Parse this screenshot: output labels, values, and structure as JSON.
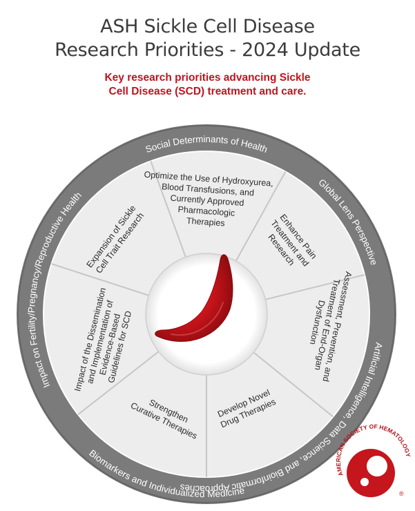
{
  "title": {
    "line1": "ASH Sickle Cell Disease",
    "line2": "Research Priorities - 2024 Update"
  },
  "subtitle": {
    "line1": "Key research priorities advancing Sickle",
    "line2": "Cell Disease (SCD) treatment and care."
  },
  "outer_ring": [
    "Social Determinants of Health",
    "Global Lens Perspective",
    "Artificial Intelligence, Data Science, and Bioinformatic Approaches",
    "Biomarkers and Individualized Medicine",
    "Impact on Fertility/Pregnancy/Reproductive Health"
  ],
  "segments": [
    {
      "lines": [
        "Optimize the Use of Hydroxyurea,",
        "Blood Transfusions, and",
        "Currently Approved",
        "Pharmacologic",
        "Therapies"
      ]
    },
    {
      "lines": [
        "Enhance Pain",
        "Treatment and",
        "Research"
      ]
    },
    {
      "lines": [
        "Assessment, Prevention, and",
        "Treatment of End-Organ",
        "Dysfunction"
      ]
    },
    {
      "lines": [
        "Develop Novel",
        "Drug Therapies"
      ]
    },
    {
      "lines": [
        "Strengthen",
        "Curative Therapies"
      ]
    },
    {
      "lines": [
        "Impact of the Dissemination",
        "and Implementation of",
        "Evidence-Based",
        "Guidelines for SCD"
      ]
    },
    {
      "lines": [
        "Expansion of Sickle",
        "Cell Trait Research"
      ]
    }
  ],
  "logo": {
    "text": "AMERICAN SOCIETY OF HEMATOLOGY",
    "mark": "®"
  },
  "colors": {
    "title": "#3b3b3b",
    "accent_red": "#c0141b",
    "ring_gray": "#7b7b7b",
    "segment_fill": "#ededed",
    "divider": "#c6c6c6",
    "cell_red": "#c4161c"
  }
}
